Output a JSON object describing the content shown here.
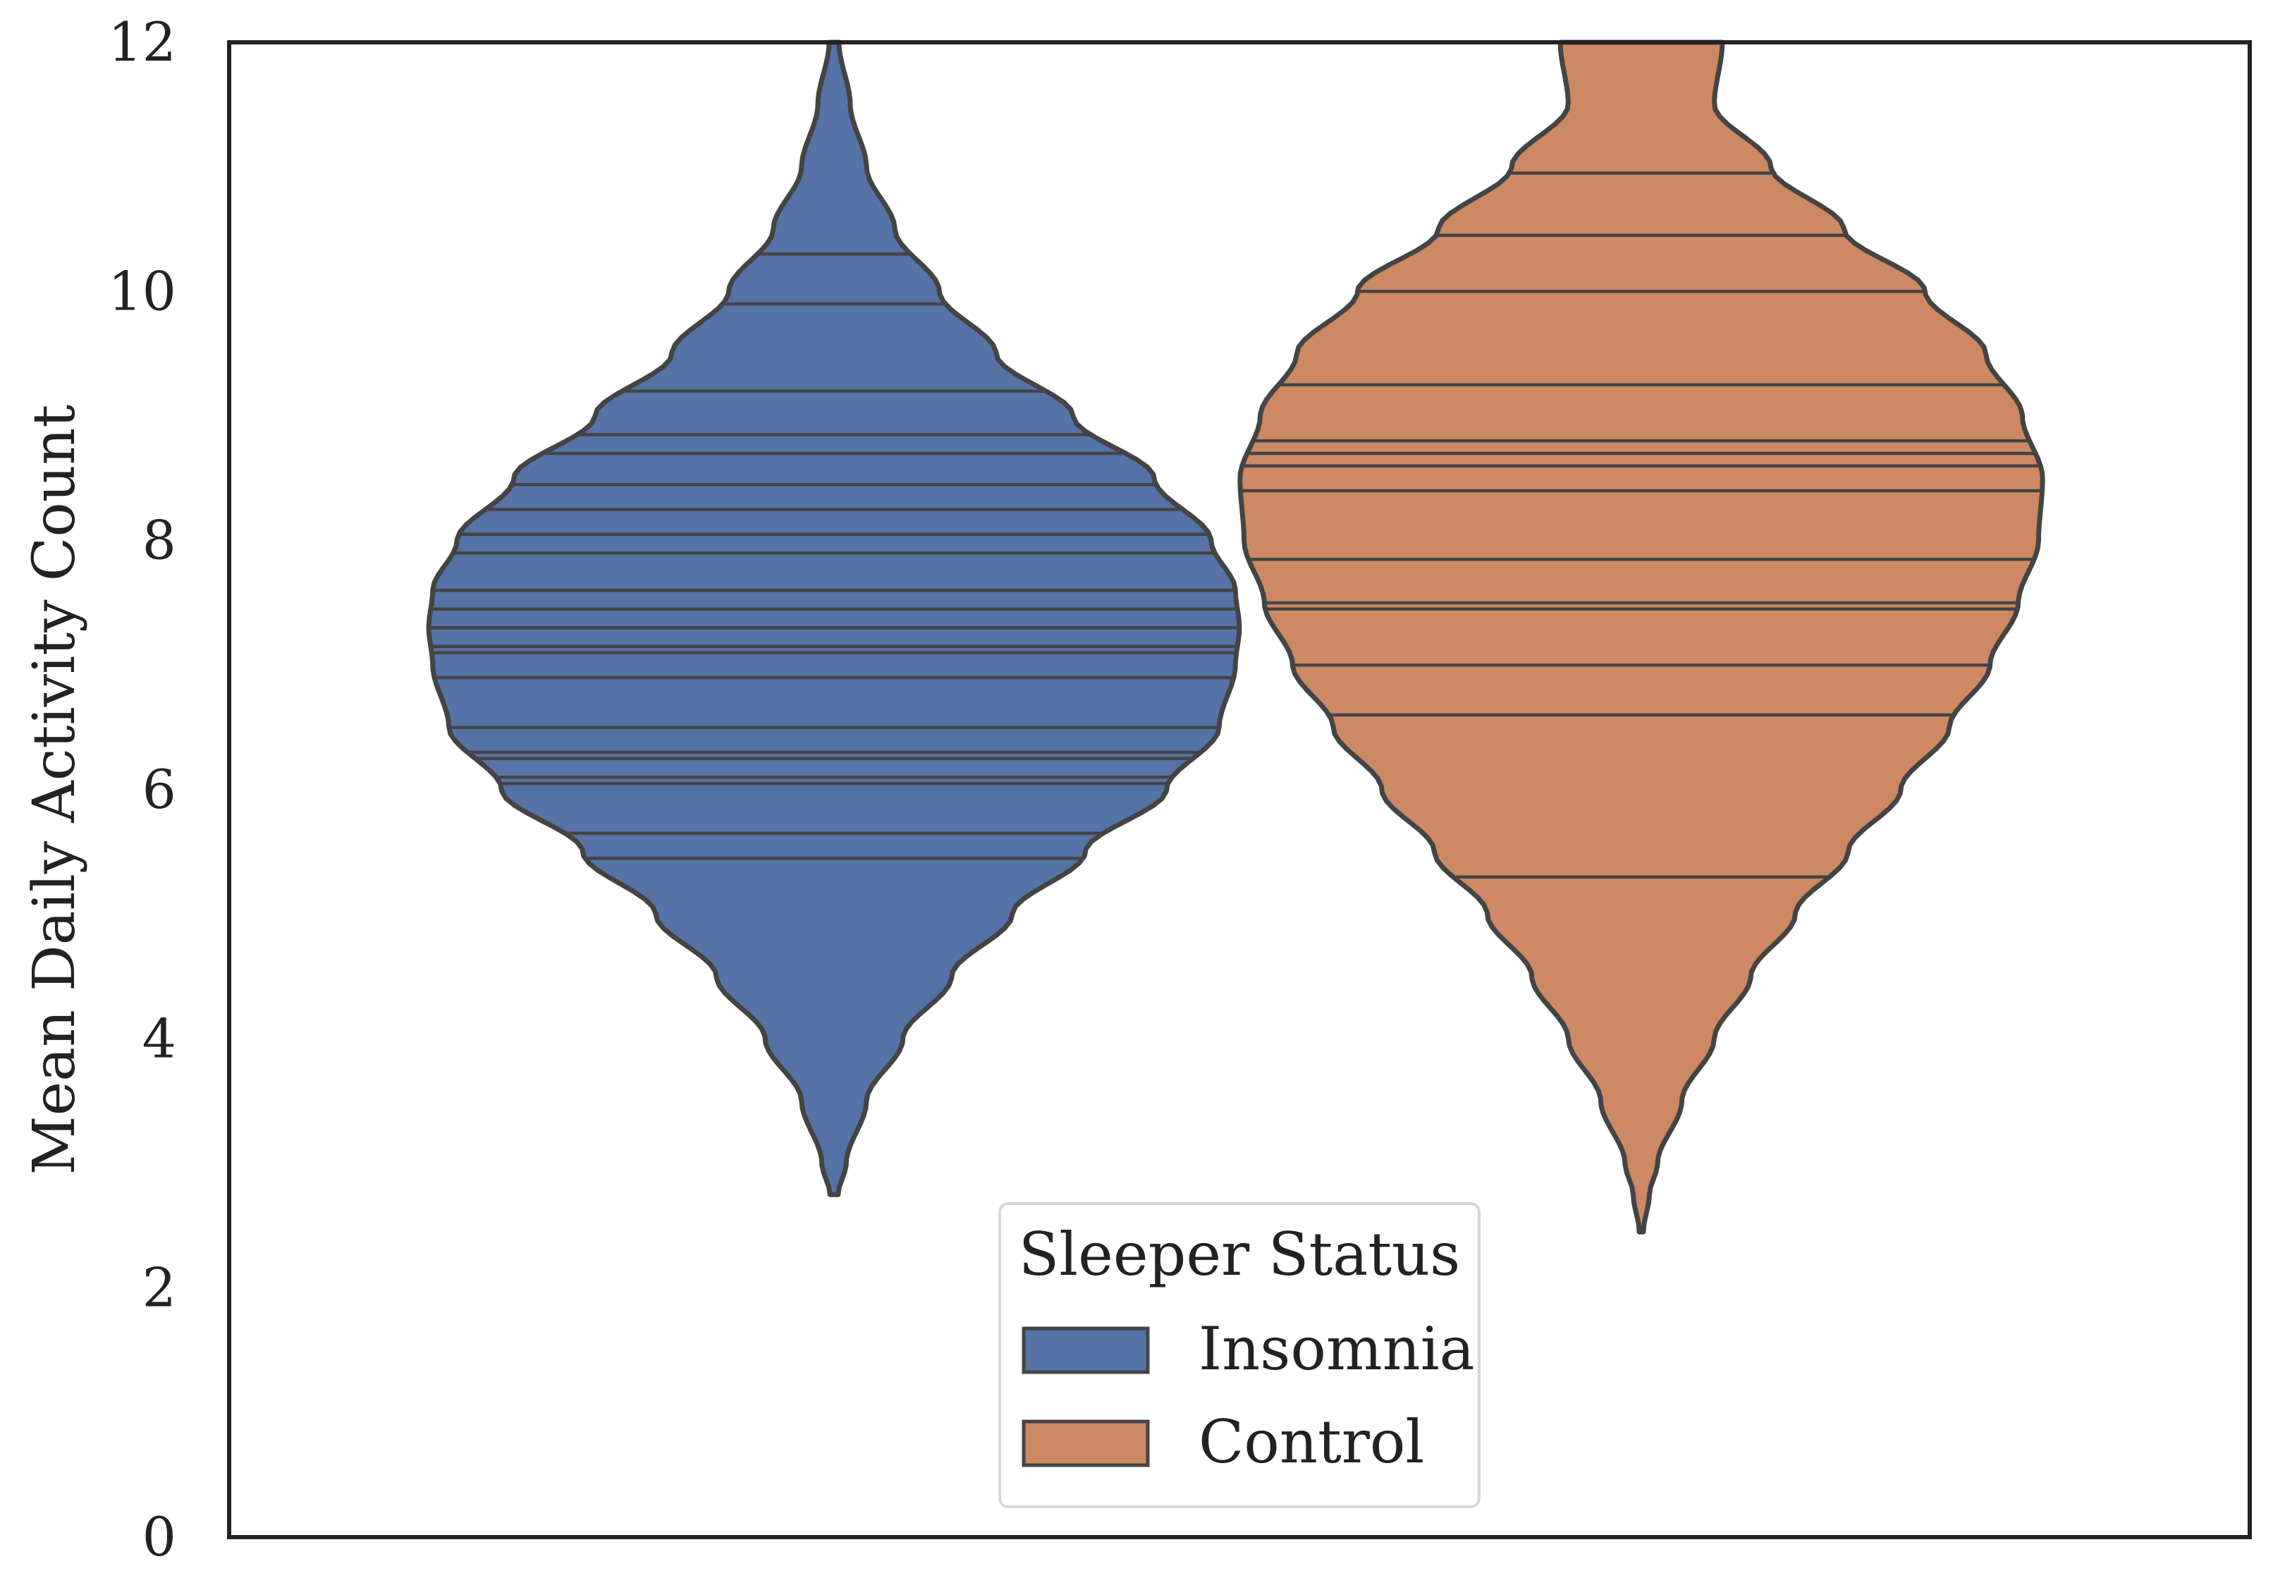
{
  "chart_data": {
    "type": "violin",
    "xlabel": "",
    "ylabel": "Mean Daily Activity Count",
    "ylim": [
      0,
      12
    ],
    "yticks": [
      0,
      2,
      4,
      6,
      8,
      10,
      12
    ],
    "ytick_labels": [
      "0",
      "2",
      "4",
      "6",
      "8",
      "10",
      "12"
    ],
    "grid": false,
    "inner": "stick",
    "legend": {
      "title": "Sleeper Status",
      "placement": "lower-center",
      "entries": [
        "Insomnia",
        "Control"
      ]
    },
    "series": [
      {
        "name": "Insomnia",
        "color": "#5573a6",
        "observations": [
          10.3,
          9.9,
          9.2,
          8.85,
          8.7,
          8.45,
          8.25,
          8.05,
          7.9,
          7.6,
          7.45,
          7.3,
          7.15,
          7.1,
          6.9,
          6.5,
          6.3,
          6.25,
          6.1,
          6.05,
          5.65,
          5.45
        ],
        "density": {
          "y": [
            2.75,
            3.0,
            3.5,
            4.0,
            4.5,
            5.0,
            5.5,
            6.0,
            6.5,
            7.0,
            7.3,
            7.6,
            8.0,
            8.5,
            9.0,
            9.5,
            10.0,
            10.5,
            11.0,
            11.5,
            12.0
          ],
          "half_width": [
            0.01,
            0.03,
            0.08,
            0.17,
            0.29,
            0.44,
            0.62,
            0.82,
            0.95,
            0.99,
            1.0,
            0.99,
            0.93,
            0.79,
            0.59,
            0.4,
            0.26,
            0.15,
            0.08,
            0.04,
            0.012
          ]
        }
      },
      {
        "name": "Control",
        "color": "#cc8963",
        "observations": [
          10.95,
          10.45,
          10.0,
          9.25,
          8.8,
          8.7,
          8.6,
          8.4,
          7.85,
          7.5,
          7.45,
          7.0,
          6.6,
          5.3
        ],
        "density": {
          "y": [
            2.45,
            2.75,
            3.0,
            3.5,
            4.0,
            4.5,
            5.0,
            5.5,
            6.0,
            6.5,
            7.0,
            7.5,
            8.0,
            8.5,
            9.0,
            9.5,
            10.0,
            10.5,
            11.0,
            11.5,
            12.0
          ],
          "half_width": [
            0.005,
            0.02,
            0.04,
            0.1,
            0.18,
            0.27,
            0.38,
            0.51,
            0.64,
            0.76,
            0.86,
            0.93,
            0.98,
            0.99,
            0.94,
            0.85,
            0.7,
            0.5,
            0.32,
            0.18,
            0.2
          ]
        }
      }
    ]
  }
}
